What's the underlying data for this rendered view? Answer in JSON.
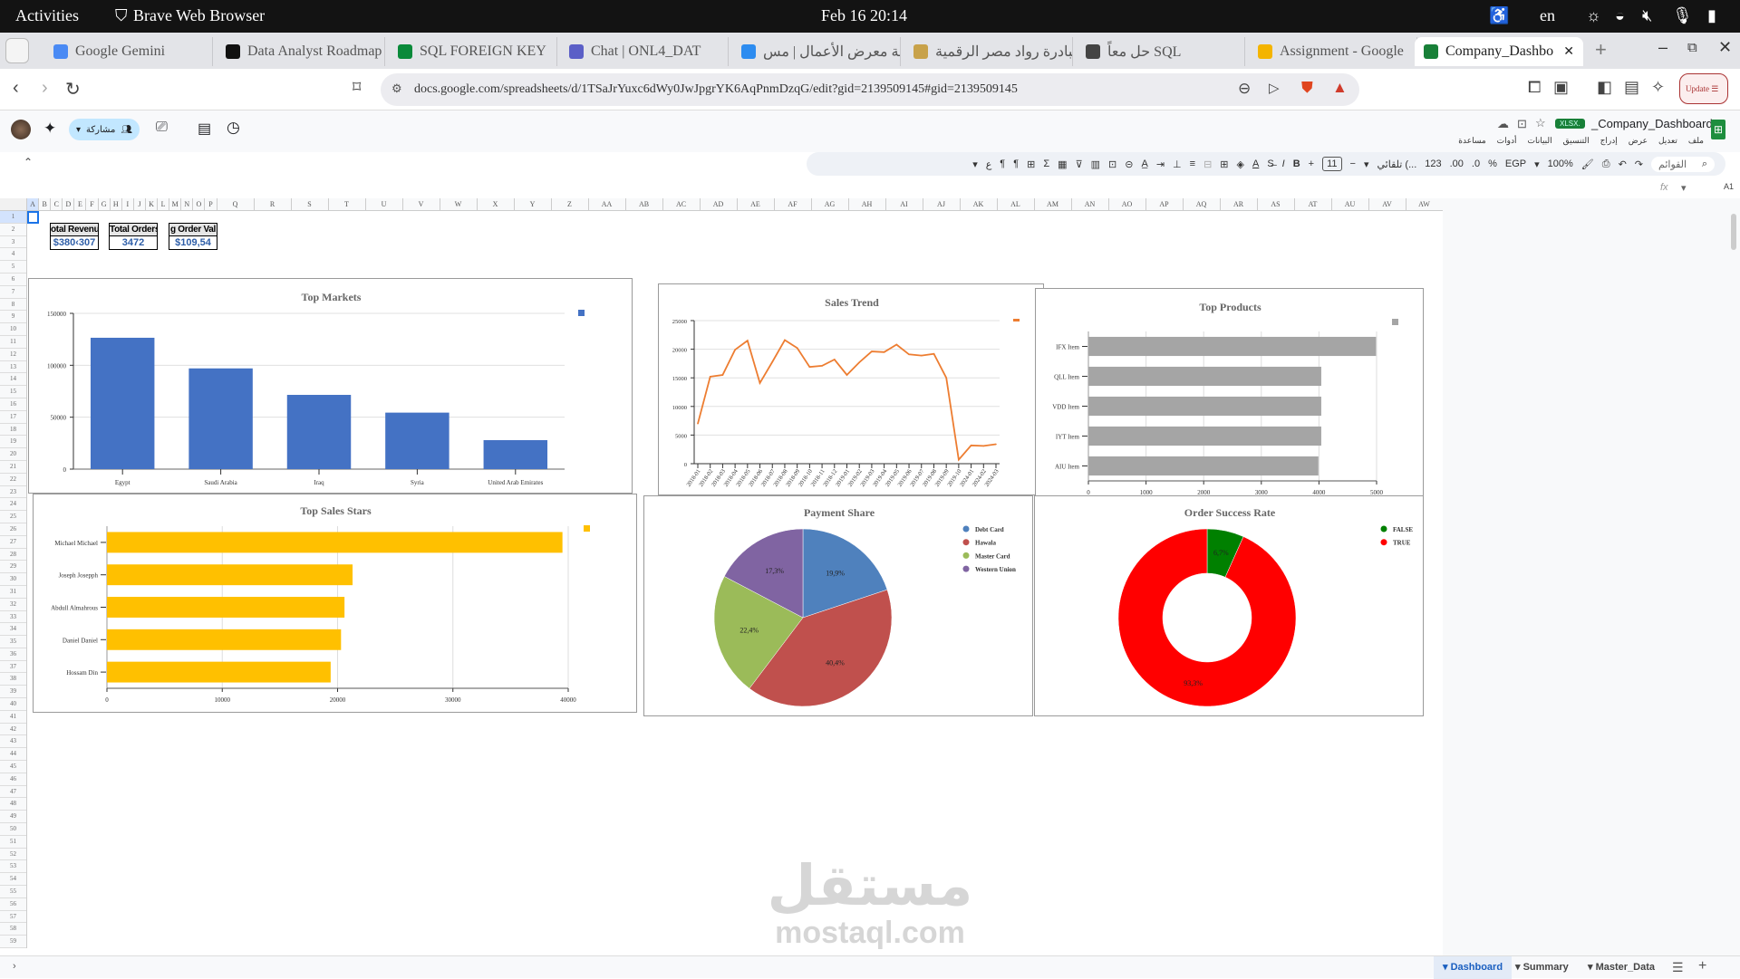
{
  "os": {
    "activities": "Activities",
    "app": "Brave Web Browser",
    "datetime": "Feb 16  20:14",
    "lang": "en"
  },
  "browser": {
    "tabs": [
      {
        "title": "Google Gemini",
        "color": "#4a8af4"
      },
      {
        "title": "Data Analyst Roadmap",
        "color": "#111111"
      },
      {
        "title": "SQL FOREIGN KEY",
        "color": "#0a8a3a"
      },
      {
        "title": "Chat | ONL4_DAT",
        "color": "#5b5fc7"
      },
      {
        "title": "إضافة معرض الأعمال | مس...",
        "color": "#2d8cf0"
      },
      {
        "title": "مبادرة رواد مصر الرقمية",
        "color": "#c8a24a"
      },
      {
        "title": "حل معاً SQL",
        "color": "#444444"
      },
      {
        "title": "Assignment - Google",
        "color": "#f4b400"
      },
      {
        "title": "Company_Dashbo",
        "color": "#188038",
        "active": true
      }
    ],
    "url": "docs.google.com/spreadsheets/d/1TSaJrYuxc6dWy0JwJpgrYK6AqPnmDzqG/edit?gid=2139509145#gid=2139509145",
    "update_label": "Update"
  },
  "sheets": {
    "doc_title": "_Company_Dashboard",
    "badge": "XLSX.",
    "share_label": "مشاركة",
    "menus": [
      "ملف",
      "تعديل",
      "عرض",
      "إدراج",
      "التنسيق",
      "البيانات",
      "أدوات",
      "مساعدة"
    ],
    "toolbar": {
      "search_placeholder": "القوائم",
      "zoom": "100%",
      "currency": "EGP",
      "percent": "%",
      "dec_dec": ".0",
      "dec_inc": ".00",
      "number_format": "123",
      "font": "تلقائي (...",
      "font_size": "11"
    },
    "cell_ref": "A1",
    "fx": "fx",
    "columns": [
      "A",
      "B",
      "C",
      "D",
      "E",
      "F",
      "G",
      "H",
      "I",
      "J",
      "K",
      "L",
      "M",
      "N",
      "O",
      "P",
      "Q",
      "R",
      "S",
      "T",
      "U",
      "V",
      "W",
      "X",
      "Y",
      "Z",
      "AA",
      "AB",
      "AC",
      "AD",
      "AE",
      "AF",
      "AG",
      "AH",
      "AI",
      "AJ",
      "AK",
      "AL",
      "AM",
      "AN",
      "AO",
      "AP",
      "AQ",
      "AR",
      "AS",
      "AT",
      "AU",
      "AV",
      "AW"
    ],
    "rows": {
      "first": 1,
      "last": 59
    },
    "sheet_tabs": [
      {
        "label": "Dashboard",
        "active": true
      },
      {
        "label": "Summary"
      },
      {
        "label": "Master_Data"
      }
    ]
  },
  "kpis": [
    {
      "header": "otal Revenu",
      "value": "$380‹307"
    },
    {
      "header": "Total Orders",
      "value": "3472"
    },
    {
      "header": "g Order Val",
      "value": "$109,54"
    }
  ],
  "watermark": {
    "arabic": "مستقل",
    "latin": "mostaql.com"
  },
  "chart_data": [
    {
      "id": "top-markets",
      "type": "bar",
      "title": "Top Markets",
      "categories": [
        "Egypt",
        "Saudi Arabia",
        "Iraq",
        "Syria",
        "United Arab Emirates"
      ],
      "values": [
        126500,
        97000,
        71500,
        54400,
        27900
      ],
      "ylim": [
        0,
        150000
      ],
      "yticks": [
        "0",
        "50000",
        "100000",
        "150000"
      ],
      "color": "#4472c4",
      "grid": true,
      "legend": "top-right"
    },
    {
      "id": "sales-trend",
      "type": "line",
      "title": "Sales Trend",
      "x": [
        "2018-01",
        "2018-02",
        "2018-03",
        "2018-04",
        "2018-05",
        "2018-06",
        "2018-07",
        "2018-08",
        "2018-09",
        "2018-10",
        "2018-11",
        "2018-12",
        "2019-01",
        "2019-02",
        "2019-03",
        "2019-04",
        "2019-05",
        "2019-06",
        "2019-07",
        "2019-08",
        "2019-09",
        "2019-10",
        "2024-01",
        "2024-02",
        "2024-03"
      ],
      "values": [
        7000,
        15200,
        15500,
        19900,
        21500,
        14100,
        17800,
        21600,
        20200,
        16900,
        17100,
        18200,
        15500,
        17700,
        19600,
        19500,
        20800,
        19100,
        18900,
        19200,
        15000,
        700,
        3200,
        3100,
        3400
      ],
      "ylim": [
        0,
        25000
      ],
      "yticks": [
        "0",
        "5000",
        "10000",
        "15000",
        "20000",
        "25000"
      ],
      "color": "#ed7d31",
      "grid": true,
      "legend": "top-right"
    },
    {
      "id": "top-products",
      "type": "bar",
      "orientation": "horizontal",
      "title": "Top Products",
      "categories": [
        "IFX Item",
        "QLL Item",
        "VDD Item",
        "IYT Item",
        "AIU Item"
      ],
      "values": [
        4990,
        4040,
        4040,
        4040,
        3990
      ],
      "xlim": [
        0,
        5000
      ],
      "xticks": [
        "0",
        "1000",
        "2000",
        "3000",
        "4000",
        "5000"
      ],
      "color": "#a5a5a5",
      "grid": true,
      "legend": "top-right"
    },
    {
      "id": "top-sales-stars",
      "type": "bar",
      "orientation": "horizontal",
      "title": "Top Sales Stars",
      "categories": [
        "Michael Michael",
        "Joseph Josepph",
        "Abdull Almahrous",
        "Daniel Daniel",
        "Hossam Din"
      ],
      "values": [
        39500,
        21300,
        20600,
        20300,
        19400
      ],
      "xlim": [
        0,
        40000
      ],
      "xticks": [
        "0",
        "10000",
        "20000",
        "30000",
        "40000"
      ],
      "color": "#ffc000",
      "grid": true,
      "legend": "top-right"
    },
    {
      "id": "payment-share",
      "type": "pie",
      "title": "Payment Share",
      "categories": [
        "Debt Card",
        "Hawala",
        "Master Card",
        "Western Union"
      ],
      "values": [
        19.9,
        40.4,
        22.4,
        17.3
      ],
      "labels": [
        "19,9%",
        "40,4%",
        "22,4%",
        "17,3%"
      ],
      "colors": [
        "#4f81bd",
        "#c0504d",
        "#9bbb59",
        "#8064a2"
      ],
      "legend": "right"
    },
    {
      "id": "order-success-rate",
      "type": "donut",
      "title": "Order Success Rate",
      "categories": [
        "FALSE",
        "TRUE"
      ],
      "values": [
        6.7,
        93.3
      ],
      "labels": [
        "6,7%",
        "93,3%"
      ],
      "colors": [
        "#008000",
        "#ff0000"
      ],
      "legend": "right"
    }
  ]
}
